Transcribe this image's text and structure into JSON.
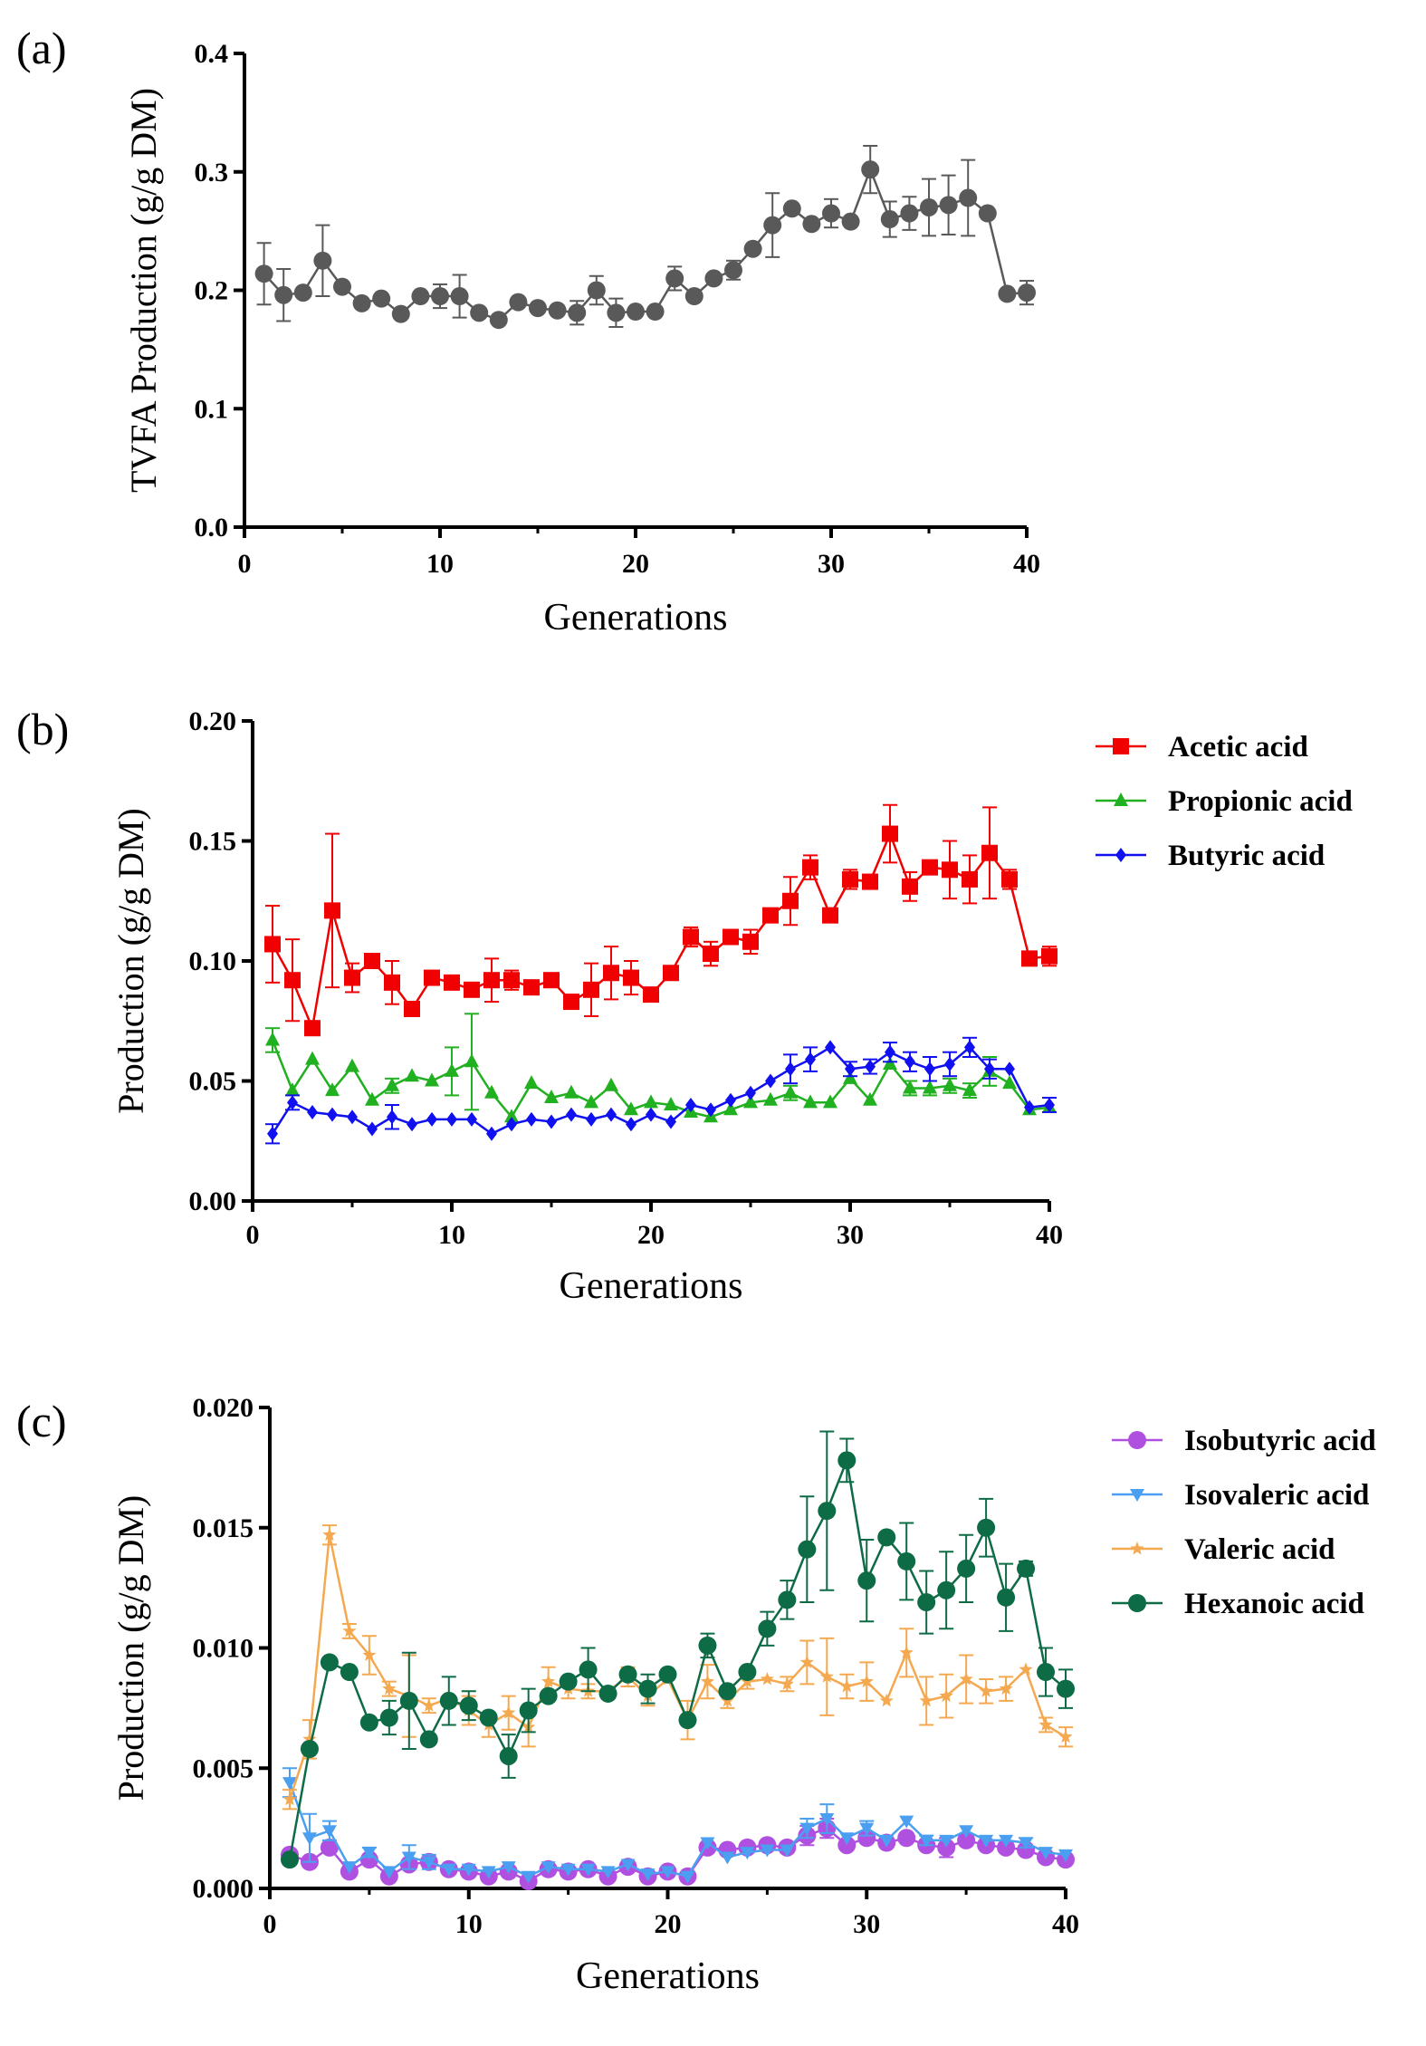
{
  "chart_data": [
    {
      "panel_label": "(a)",
      "type": "line",
      "xlabel": "Generations",
      "ylabel": "TVFA Production (g/g DM)",
      "xlim": [
        0,
        40
      ],
      "ylim": [
        0,
        0.4
      ],
      "xticks": [
        "0",
        "10",
        "20",
        "30",
        "40"
      ],
      "yticks": [
        "0.0",
        "0.1",
        "0.2",
        "0.3",
        "0.4"
      ],
      "grid": false,
      "legend": null,
      "series": [
        {
          "color": "#595959",
          "marker": "circle",
          "x": [
            1,
            2,
            3,
            4,
            5,
            6,
            7,
            8,
            9,
            10,
            11,
            12,
            13,
            14,
            15,
            16,
            17,
            18,
            19,
            20,
            21,
            22,
            23,
            24,
            25,
            26,
            27,
            28,
            29,
            30,
            31,
            32,
            33,
            34,
            35,
            36,
            37,
            38,
            39,
            40
          ],
          "y": [
            0.214,
            0.196,
            0.198,
            0.225,
            0.203,
            0.189,
            0.193,
            0.18,
            0.195,
            0.195,
            0.195,
            0.181,
            0.175,
            0.19,
            0.185,
            0.183,
            0.181,
            0.2,
            0.181,
            0.182,
            0.182,
            0.21,
            0.195,
            0.21,
            0.217,
            0.235,
            0.255,
            0.269,
            0.256,
            0.265,
            0.258,
            0.302,
            0.26,
            0.265,
            0.27,
            0.272,
            0.278,
            0.265,
            0.197,
            0.198
          ],
          "err": [
            0.026,
            0.022,
            0,
            0.03,
            0,
            0,
            0,
            0,
            0,
            0.01,
            0.018,
            0,
            0,
            0,
            0,
            0,
            0.01,
            0.012,
            0.012,
            0,
            0,
            0.01,
            0,
            0,
            0.008,
            0,
            0.027,
            0,
            0,
            0.012,
            0,
            0.02,
            0.015,
            0.014,
            0.024,
            0.025,
            0.032,
            0,
            0,
            0.01
          ]
        }
      ]
    },
    {
      "panel_label": "(b)",
      "type": "line",
      "xlabel": "Generations",
      "ylabel": "Production (g/g DM)",
      "xlim": [
        0,
        40
      ],
      "ylim": [
        0,
        0.2
      ],
      "xticks": [
        "0",
        "10",
        "20",
        "30",
        "40"
      ],
      "yticks": [
        "0.00",
        "0.05",
        "0.10",
        "0.15",
        "0.20"
      ],
      "grid": false,
      "legend": "right",
      "series": [
        {
          "name": "Acetic acid",
          "color": "#f00000",
          "marker": "square",
          "x": [
            1,
            2,
            3,
            4,
            5,
            6,
            7,
            8,
            9,
            10,
            11,
            12,
            13,
            14,
            15,
            16,
            17,
            18,
            19,
            20,
            21,
            22,
            23,
            24,
            25,
            26,
            27,
            28,
            29,
            30,
            31,
            32,
            33,
            34,
            35,
            36,
            37,
            38,
            39,
            40
          ],
          "y": [
            0.107,
            0.092,
            0.072,
            0.121,
            0.093,
            0.1,
            0.091,
            0.08,
            0.093,
            0.091,
            0.088,
            0.092,
            0.092,
            0.089,
            0.092,
            0.083,
            0.088,
            0.095,
            0.093,
            0.086,
            0.095,
            0.11,
            0.103,
            0.11,
            0.108,
            0.119,
            0.125,
            0.139,
            0.119,
            0.134,
            0.133,
            0.153,
            0.131,
            0.139,
            0.138,
            0.134,
            0.145,
            0.134,
            0.101,
            0.102
          ],
          "err": [
            0.016,
            0.017,
            0,
            0.032,
            0.006,
            0,
            0.009,
            0,
            0,
            0,
            0,
            0.009,
            0.004,
            0,
            0,
            0,
            0.011,
            0.011,
            0.007,
            0,
            0,
            0.004,
            0.005,
            0.003,
            0.005,
            0,
            0.01,
            0.005,
            0,
            0.004,
            0,
            0.012,
            0.006,
            0,
            0.012,
            0.01,
            0.019,
            0.004,
            0,
            0.004
          ]
        },
        {
          "name": "Propionic acid",
          "color": "#20b020",
          "marker": "triangle",
          "x": [
            1,
            2,
            3,
            4,
            5,
            6,
            7,
            8,
            9,
            10,
            11,
            12,
            13,
            14,
            15,
            16,
            17,
            18,
            19,
            20,
            21,
            22,
            23,
            24,
            25,
            26,
            27,
            28,
            29,
            30,
            31,
            32,
            33,
            34,
            35,
            36,
            37,
            38,
            39,
            40
          ],
          "y": [
            0.067,
            0.046,
            0.059,
            0.046,
            0.056,
            0.042,
            0.048,
            0.052,
            0.05,
            0.054,
            0.058,
            0.045,
            0.035,
            0.049,
            0.043,
            0.045,
            0.041,
            0.048,
            0.038,
            0.041,
            0.04,
            0.037,
            0.035,
            0.038,
            0.041,
            0.042,
            0.045,
            0.041,
            0.041,
            0.051,
            0.042,
            0.057,
            0.047,
            0.047,
            0.048,
            0.046,
            0.054,
            0.049,
            0.038,
            0.039
          ],
          "err": [
            0.005,
            0,
            0,
            0,
            0,
            0,
            0.003,
            0,
            0,
            0.01,
            0.02,
            0,
            0,
            0,
            0,
            0,
            0,
            0,
            0,
            0,
            0,
            0,
            0,
            0,
            0,
            0,
            0.003,
            0,
            0,
            0,
            0,
            0,
            0.003,
            0.003,
            0.003,
            0.003,
            0.006,
            0,
            0,
            0
          ]
        },
        {
          "name": "Butyric acid",
          "color": "#1010f0",
          "marker": "diamond",
          "x": [
            1,
            2,
            3,
            4,
            5,
            6,
            7,
            8,
            9,
            10,
            11,
            12,
            13,
            14,
            15,
            16,
            17,
            18,
            19,
            20,
            21,
            22,
            23,
            24,
            25,
            26,
            27,
            28,
            29,
            30,
            31,
            32,
            33,
            34,
            35,
            36,
            37,
            38,
            39,
            40
          ],
          "y": [
            0.028,
            0.041,
            0.037,
            0.036,
            0.035,
            0.03,
            0.035,
            0.032,
            0.034,
            0.034,
            0.034,
            0.028,
            0.032,
            0.034,
            0.033,
            0.036,
            0.034,
            0.036,
            0.032,
            0.036,
            0.033,
            0.04,
            0.038,
            0.042,
            0.045,
            0.05,
            0.055,
            0.059,
            0.064,
            0.055,
            0.056,
            0.062,
            0.058,
            0.055,
            0.057,
            0.064,
            0.055,
            0.055,
            0.039,
            0.04
          ],
          "err": [
            0.004,
            0.003,
            0,
            0,
            0,
            0,
            0.005,
            0,
            0,
            0,
            0,
            0,
            0,
            0,
            0,
            0,
            0,
            0,
            0,
            0,
            0,
            0,
            0,
            0,
            0,
            0,
            0.006,
            0.005,
            0,
            0.003,
            0.003,
            0.004,
            0.004,
            0.005,
            0.005,
            0.004,
            0.004,
            0,
            0,
            0.003
          ]
        }
      ]
    },
    {
      "panel_label": "(c)",
      "type": "line",
      "xlabel": "Generations",
      "ylabel": "Production (g/g DM)",
      "xlim": [
        0,
        40
      ],
      "ylim": [
        0,
        0.02
      ],
      "xticks": [
        "0",
        "10",
        "20",
        "30",
        "40"
      ],
      "yticks": [
        "0.000",
        "0.005",
        "0.010",
        "0.015",
        "0.020"
      ],
      "grid": false,
      "legend": "right",
      "series": [
        {
          "name": "Isobutyric acid",
          "color": "#b050e0",
          "marker": "circle",
          "x": [
            1,
            2,
            3,
            4,
            5,
            6,
            7,
            8,
            9,
            10,
            11,
            12,
            13,
            14,
            15,
            16,
            17,
            18,
            19,
            20,
            21,
            22,
            23,
            24,
            25,
            26,
            27,
            28,
            29,
            30,
            31,
            32,
            33,
            34,
            35,
            36,
            37,
            38,
            39,
            40
          ],
          "y": [
            0.0014,
            0.0011,
            0.0017,
            0.0007,
            0.0012,
            0.0005,
            0.001,
            0.0011,
            0.0008,
            0.0007,
            0.0005,
            0.0007,
            0.0003,
            0.0008,
            0.0007,
            0.0008,
            0.0005,
            0.0009,
            0.0005,
            0.0007,
            0.0005,
            0.0017,
            0.0016,
            0.0017,
            0.0018,
            0.0017,
            0.0022,
            0.0025,
            0.0018,
            0.0021,
            0.0019,
            0.0021,
            0.0018,
            0.0017,
            0.002,
            0.0018,
            0.0017,
            0.0016,
            0.0013,
            0.0012
          ],
          "err": [
            0.0002,
            0,
            0,
            0,
            0,
            0,
            0,
            0,
            0,
            0,
            0,
            0,
            0,
            0,
            0,
            0,
            0,
            0,
            0,
            0,
            0,
            0,
            0,
            0,
            0,
            0,
            0.0004,
            0.0004,
            0,
            0,
            0,
            0,
            0.0002,
            0.0004,
            0,
            0,
            0,
            0,
            0,
            0.0002
          ]
        },
        {
          "name": "Isovaleric acid",
          "color": "#4a9ff0",
          "marker": "triangle-down",
          "x": [
            1,
            2,
            3,
            4,
            5,
            6,
            7,
            8,
            9,
            10,
            11,
            12,
            13,
            14,
            15,
            16,
            17,
            18,
            19,
            20,
            21,
            22,
            23,
            24,
            25,
            26,
            27,
            28,
            29,
            30,
            31,
            32,
            33,
            34,
            35,
            36,
            37,
            38,
            39,
            40
          ],
          "y": [
            0.0044,
            0.0021,
            0.0024,
            0.0009,
            0.0015,
            0.0007,
            0.0013,
            0.0011,
            0.0008,
            0.0008,
            0.0007,
            0.0009,
            0.0005,
            0.0009,
            0.0008,
            0.0008,
            0.0007,
            0.001,
            0.0006,
            0.0007,
            0.0005,
            0.0019,
            0.0013,
            0.0015,
            0.0016,
            0.0016,
            0.0025,
            0.0029,
            0.0021,
            0.0025,
            0.002,
            0.0028,
            0.002,
            0.002,
            0.0024,
            0.002,
            0.002,
            0.0019,
            0.0015,
            0.0014
          ],
          "err": [
            0.0006,
            0.001,
            0.0004,
            0,
            0.0002,
            0,
            0.0005,
            0.0003,
            0,
            0,
            0,
            0,
            0,
            0,
            0,
            0,
            0,
            0,
            0,
            0,
            0,
            0,
            0,
            0,
            0,
            0,
            0.0004,
            0.0006,
            0,
            0.0003,
            0,
            0,
            0.0002,
            0,
            0,
            0,
            0,
            0.0002,
            0,
            0
          ]
        },
        {
          "name": "Valeric acid",
          "color": "#f4a950",
          "marker": "star",
          "x": [
            1,
            2,
            3,
            4,
            5,
            6,
            7,
            8,
            9,
            10,
            11,
            12,
            13,
            14,
            15,
            16,
            17,
            18,
            19,
            20,
            21,
            22,
            23,
            24,
            25,
            26,
            27,
            28,
            29,
            30,
            31,
            32,
            33,
            34,
            35,
            36,
            37,
            38,
            39,
            40
          ],
          "y": [
            0.0037,
            0.0062,
            0.0147,
            0.0107,
            0.0097,
            0.0083,
            0.008,
            0.0076,
            0.0079,
            0.0074,
            0.0068,
            0.0073,
            0.0067,
            0.0086,
            0.0083,
            0.0082,
            0.0082,
            0.0088,
            0.008,
            0.0087,
            0.007,
            0.0086,
            0.0078,
            0.0086,
            0.0087,
            0.0085,
            0.0094,
            0.0088,
            0.0084,
            0.0086,
            0.0078,
            0.0098,
            0.0078,
            0.008,
            0.0087,
            0.0082,
            0.0083,
            0.0091,
            0.0068,
            0.0063
          ],
          "err": [
            0.0004,
            0.0008,
            0.0004,
            0.0003,
            0.0008,
            0.0003,
            0.0017,
            0.0003,
            0,
            0.0006,
            0.0005,
            0.0007,
            0.0008,
            0.0006,
            0.0004,
            0.0003,
            0,
            0.0004,
            0.0004,
            0,
            0.0008,
            0.0007,
            0.0003,
            0.0003,
            0,
            0.0003,
            0.0009,
            0.0016,
            0.0005,
            0.0008,
            0,
            0.001,
            0.001,
            0.0009,
            0.001,
            0.0005,
            0.0005,
            0,
            0.0003,
            0.0004
          ]
        },
        {
          "name": "Hexanoic acid",
          "color": "#0d6b45",
          "marker": "circle",
          "x": [
            1,
            2,
            3,
            4,
            5,
            6,
            7,
            8,
            9,
            10,
            11,
            12,
            13,
            14,
            15,
            16,
            17,
            18,
            19,
            20,
            21,
            22,
            23,
            24,
            25,
            26,
            27,
            28,
            29,
            30,
            31,
            32,
            33,
            34,
            35,
            36,
            37,
            38,
            39,
            40
          ],
          "y": [
            0.0012,
            0.0058,
            0.0094,
            0.009,
            0.0069,
            0.0071,
            0.0078,
            0.0062,
            0.0078,
            0.0076,
            0.0071,
            0.0055,
            0.0074,
            0.008,
            0.0086,
            0.0091,
            0.0081,
            0.0089,
            0.0083,
            0.0089,
            0.007,
            0.0101,
            0.0082,
            0.009,
            0.0108,
            0.012,
            0.0141,
            0.0157,
            0.0178,
            0.0128,
            0.0146,
            0.0136,
            0.0119,
            0.0124,
            0.0133,
            0.015,
            0.0121,
            0.0133,
            0.009,
            0.0083
          ],
          "err": [
            0,
            0,
            0,
            0,
            0,
            0.0007,
            0.002,
            0,
            0.001,
            0.0006,
            0,
            0.0009,
            0.0009,
            0,
            0,
            0.0009,
            0,
            0,
            0.0006,
            0,
            0,
            0.0005,
            0,
            0,
            0.0007,
            0.0008,
            0.0022,
            0.0033,
            0.0009,
            0.0017,
            0,
            0.0016,
            0.0013,
            0.0016,
            0.0014,
            0.0012,
            0.0014,
            0.0003,
            0.001,
            0.0008
          ]
        }
      ]
    }
  ]
}
